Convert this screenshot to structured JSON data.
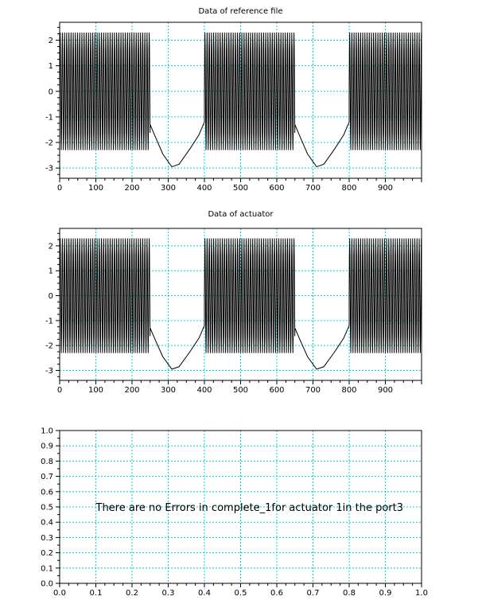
{
  "chart_data": [
    {
      "type": "line",
      "title": "Data of reference file",
      "xlabel": "",
      "ylabel": "",
      "xlim": [
        0,
        1000
      ],
      "ylim": [
        -3.4,
        2.7
      ],
      "xticks": [
        0,
        100,
        200,
        300,
        400,
        500,
        600,
        700,
        800,
        900
      ],
      "xtick_labels": [
        "0",
        "100",
        "200",
        "300",
        "400",
        "500",
        "600",
        "700",
        "800",
        "900"
      ],
      "yticks": [
        -3,
        -2,
        -1,
        0,
        1,
        2
      ],
      "ytick_labels": [
        "-3",
        "-2",
        "-1",
        "0",
        "1",
        "2"
      ],
      "grid": true,
      "grid_color": "#00d8d8",
      "line_color": "#000000",
      "series": [
        {
          "segments": [
            {
              "kind": "oscillation",
              "x_start": 0,
              "x_end": 250,
              "period": 6.0,
              "y_min": -2.3,
              "y_max": 2.3
            },
            {
              "kind": "curve",
              "points": [
                [
                  250,
                  -1.3
                ],
                [
                  265,
                  -1.8
                ],
                [
                  285,
                  -2.45
                ],
                [
                  310,
                  -2.95
                ],
                [
                  330,
                  -2.85
                ],
                [
                  360,
                  -2.25
                ],
                [
                  385,
                  -1.7
                ],
                [
                  400,
                  -1.2
                ]
              ]
            },
            {
              "kind": "oscillation",
              "x_start": 400,
              "x_end": 650,
              "period": 6.0,
              "y_min": -2.3,
              "y_max": 2.3
            },
            {
              "kind": "curve",
              "points": [
                [
                  650,
                  -1.3
                ],
                [
                  665,
                  -1.8
                ],
                [
                  685,
                  -2.45
                ],
                [
                  710,
                  -2.95
                ],
                [
                  730,
                  -2.85
                ],
                [
                  760,
                  -2.25
                ],
                [
                  785,
                  -1.7
                ],
                [
                  800,
                  -1.2
                ]
              ]
            },
            {
              "kind": "oscillation",
              "x_start": 800,
              "x_end": 1000,
              "period": 6.0,
              "y_min": -2.3,
              "y_max": 2.3
            }
          ]
        }
      ]
    },
    {
      "type": "line",
      "title": "Data of actuator",
      "xlabel": "",
      "ylabel": "",
      "xlim": [
        0,
        1000
      ],
      "ylim": [
        -3.4,
        2.7
      ],
      "xticks": [
        0,
        100,
        200,
        300,
        400,
        500,
        600,
        700,
        800,
        900
      ],
      "xtick_labels": [
        "0",
        "100",
        "200",
        "300",
        "400",
        "500",
        "600",
        "700",
        "800",
        "900"
      ],
      "yticks": [
        -3,
        -2,
        -1,
        0,
        1,
        2
      ],
      "ytick_labels": [
        "-3",
        "-2",
        "-1",
        "0",
        "1",
        "2"
      ],
      "grid": true,
      "grid_color": "#00d8d8",
      "line_color": "#000000",
      "series": [
        {
          "segments": [
            {
              "kind": "oscillation",
              "x_start": 0,
              "x_end": 250,
              "period": 6.0,
              "y_min": -2.3,
              "y_max": 2.3
            },
            {
              "kind": "curve",
              "points": [
                [
                  250,
                  -1.3
                ],
                [
                  265,
                  -1.8
                ],
                [
                  285,
                  -2.45
                ],
                [
                  310,
                  -2.95
                ],
                [
                  330,
                  -2.85
                ],
                [
                  360,
                  -2.25
                ],
                [
                  385,
                  -1.7
                ],
                [
                  400,
                  -1.2
                ]
              ]
            },
            {
              "kind": "oscillation",
              "x_start": 400,
              "x_end": 650,
              "period": 6.0,
              "y_min": -2.3,
              "y_max": 2.3
            },
            {
              "kind": "curve",
              "points": [
                [
                  650,
                  -1.3
                ],
                [
                  665,
                  -1.8
                ],
                [
                  685,
                  -2.45
                ],
                [
                  710,
                  -2.95
                ],
                [
                  730,
                  -2.85
                ],
                [
                  760,
                  -2.25
                ],
                [
                  785,
                  -1.7
                ],
                [
                  800,
                  -1.2
                ]
              ]
            },
            {
              "kind": "oscillation",
              "x_start": 800,
              "x_end": 1000,
              "period": 6.0,
              "y_min": -2.3,
              "y_max": 2.3
            }
          ]
        }
      ]
    },
    {
      "type": "line",
      "title": "",
      "xlabel": "",
      "ylabel": "",
      "xlim": [
        0,
        1
      ],
      "ylim": [
        0,
        1
      ],
      "xticks": [
        0,
        0.1,
        0.2,
        0.3,
        0.4,
        0.5,
        0.6,
        0.7,
        0.8,
        0.9,
        1
      ],
      "xtick_labels": [
        "0.0",
        "0.1",
        "0.2",
        "0.3",
        "0.4",
        "0.5",
        "0.6",
        "0.7",
        "0.8",
        "0.9",
        "1.0"
      ],
      "yticks": [
        0,
        0.1,
        0.2,
        0.3,
        0.4,
        0.5,
        0.6,
        0.7,
        0.8,
        0.9,
        1
      ],
      "ytick_labels": [
        "0.0",
        "0.1",
        "0.2",
        "0.3",
        "0.4",
        "0.5",
        "0.6",
        "0.7",
        "0.8",
        "0.9",
        "1.0"
      ],
      "grid": true,
      "grid_color": "#00d8d8",
      "series": [],
      "annotation": {
        "text": "There are no Errors in complete_1for actuator 1in the port3",
        "x": 0.1,
        "y": 0.5
      }
    }
  ]
}
